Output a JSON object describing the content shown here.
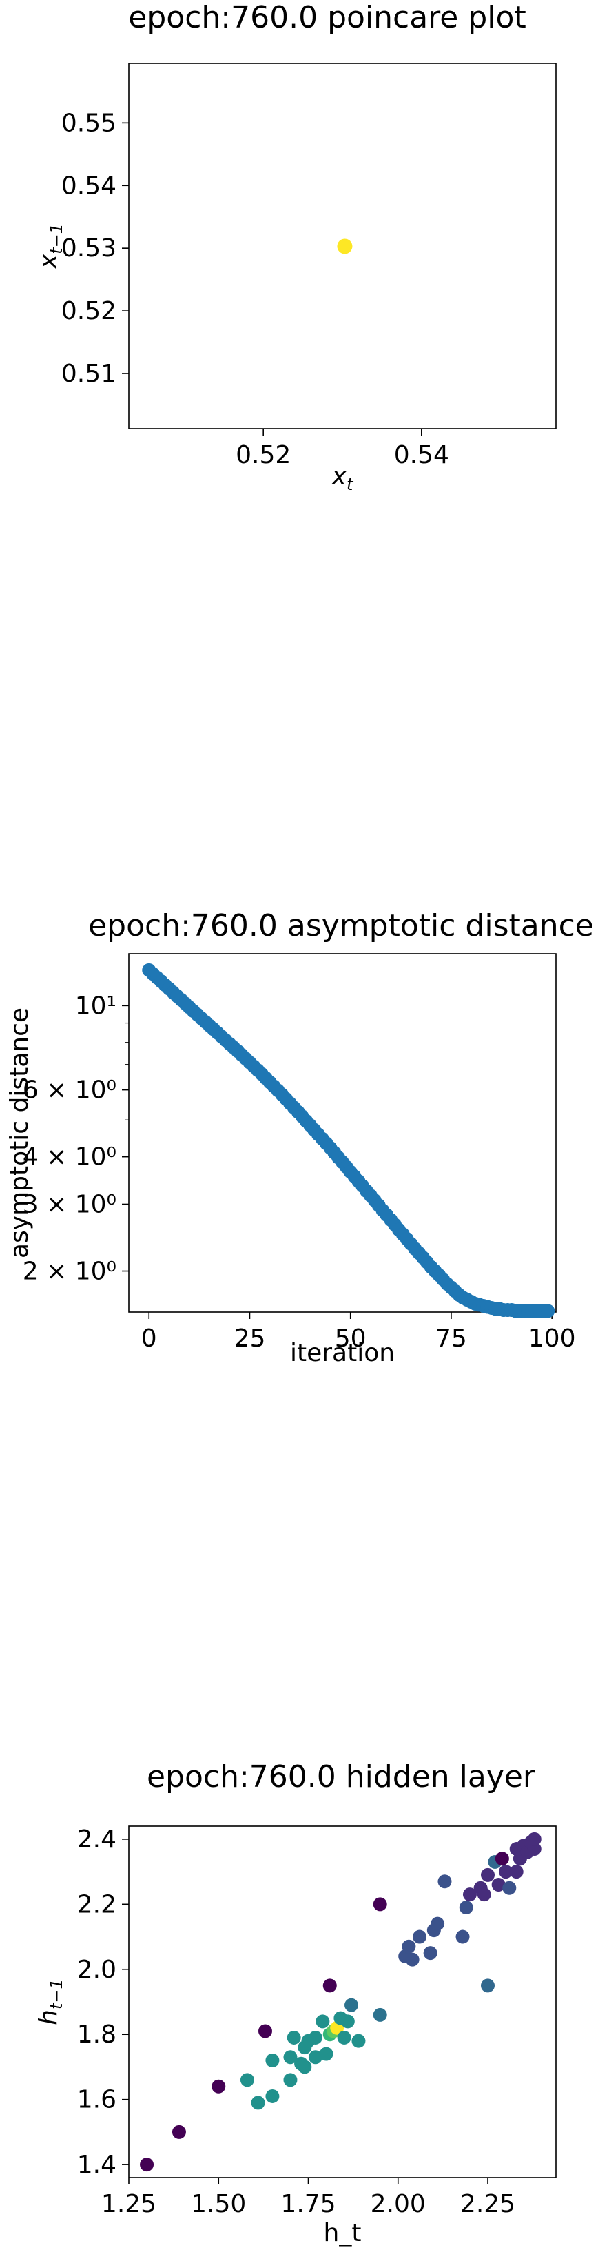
{
  "charts": [
    {
      "title": "epoch:760.0 poincare plot",
      "xlabel": "x_t",
      "ylabel": "x_{t-1}"
    },
    {
      "title": "epoch:760.0 asymptotic distance",
      "xlabel": "iteration",
      "ylabel": "asymptotic distance"
    },
    {
      "title": "epoch:760.0 hidden layer",
      "xlabel": "h_t",
      "ylabel": "h_{t-1}"
    }
  ],
  "chart_data": [
    {
      "type": "scatter",
      "title": "epoch:760.0 poincare plot",
      "xlabel": "x_t",
      "ylabel": "x_{t-1}",
      "xlim": [
        0.503,
        0.557
      ],
      "ylim": [
        0.5012,
        0.5595
      ],
      "xticks": [
        0.52,
        0.54
      ],
      "xtick_labels": [
        "0.52",
        "0.54"
      ],
      "yticks": [
        0.51,
        0.52,
        0.53,
        0.54,
        0.55
      ],
      "ytick_labels": [
        "0.51",
        "0.52",
        "0.53",
        "0.54",
        "0.55"
      ],
      "points": [
        {
          "x": 0.5303,
          "y": 0.5303,
          "color": "#fde725"
        }
      ]
    },
    {
      "type": "scatter",
      "title": "epoch:760.0 asymptotic distance",
      "xlabel": "iteration",
      "ylabel": "asymptotic distance",
      "yscale": "log",
      "xlim": [
        -5,
        101
      ],
      "ylim": [
        1.56,
        13.7
      ],
      "xticks": [
        0,
        25,
        50,
        75,
        100
      ],
      "xtick_labels": [
        "0",
        "25",
        "50",
        "75",
        "100"
      ],
      "yticks": [
        2,
        3,
        4,
        6,
        10
      ],
      "ytick_labels": [
        "2 × 10⁰",
        "3 × 10⁰",
        "4 × 10⁰",
        "6 × 10⁰",
        "10¹"
      ],
      "minor_yticks": [
        5,
        7,
        8,
        9
      ],
      "marker_color": "#1f77b4",
      "series": [
        {
          "x": [
            0,
            1,
            2,
            3,
            4,
            5,
            6,
            7,
            8,
            9,
            10,
            11,
            12,
            13,
            14,
            15,
            16,
            17,
            18,
            19,
            20,
            21,
            22,
            23,
            24,
            25,
            26,
            27,
            28,
            29,
            30,
            31,
            32,
            33,
            34,
            35,
            36,
            37,
            38,
            39,
            40,
            41,
            42,
            43,
            44,
            45,
            46,
            47,
            48,
            49,
            50,
            51,
            52,
            53,
            54,
            55,
            56,
            57,
            58,
            59,
            60,
            61,
            62,
            63,
            64,
            65,
            66,
            67,
            68,
            69,
            70,
            71,
            72,
            73,
            74,
            75,
            76,
            77,
            78,
            79,
            80,
            81,
            82,
            83,
            84,
            85,
            86,
            87,
            88,
            89,
            90,
            91,
            92,
            93,
            94,
            95,
            96,
            97,
            98,
            99
          ],
          "y": [
            12.4,
            12.12,
            11.85,
            11.59,
            11.33,
            11.08,
            10.83,
            10.59,
            10.36,
            10.13,
            9.9,
            9.68,
            9.47,
            9.26,
            9.06,
            8.86,
            8.67,
            8.48,
            8.29,
            8.11,
            7.93,
            7.76,
            7.59,
            7.42,
            7.25,
            7.08,
            6.92,
            6.76,
            6.6,
            6.44,
            6.28,
            6.13,
            5.98,
            5.83,
            5.68,
            5.53,
            5.39,
            5.25,
            5.11,
            4.97,
            4.84,
            4.71,
            4.58,
            4.46,
            4.34,
            4.22,
            4.1,
            3.98,
            3.87,
            3.76,
            3.65,
            3.55,
            3.45,
            3.35,
            3.25,
            3.16,
            3.07,
            2.98,
            2.89,
            2.81,
            2.73,
            2.65,
            2.57,
            2.5,
            2.43,
            2.36,
            2.29,
            2.23,
            2.17,
            2.11,
            2.05,
            2,
            1.95,
            1.9,
            1.85,
            1.81,
            1.77,
            1.73,
            1.7,
            1.68,
            1.66,
            1.64,
            1.63,
            1.62,
            1.61,
            1.6,
            1.59,
            1.59,
            1.58,
            1.58,
            1.58,
            1.57,
            1.57,
            1.57,
            1.57,
            1.57,
            1.57,
            1.57,
            1.57,
            1.57
          ]
        }
      ]
    },
    {
      "type": "scatter",
      "title": "epoch:760.0 hidden layer",
      "xlabel": "h_t",
      "ylabel": "h_{t-1}",
      "xlim": [
        1.25,
        2.44
      ],
      "ylim": [
        1.36,
        2.44
      ],
      "xticks": [
        1.25,
        1.5,
        1.75,
        2.0,
        2.25
      ],
      "xtick_labels": [
        "1.25",
        "1.50",
        "1.75",
        "2.00",
        "2.25"
      ],
      "yticks": [
        1.4,
        1.6,
        1.8,
        2.0,
        2.2,
        2.4
      ],
      "ytick_labels": [
        "1.4",
        "1.6",
        "1.8",
        "2.0",
        "2.2",
        "2.4"
      ],
      "colormap": "viridis",
      "points": [
        {
          "x": 1.3,
          "y": 1.4,
          "color": "#440154"
        },
        {
          "x": 1.39,
          "y": 1.5,
          "color": "#440154"
        },
        {
          "x": 1.5,
          "y": 1.64,
          "color": "#440154"
        },
        {
          "x": 1.63,
          "y": 1.81,
          "color": "#440154"
        },
        {
          "x": 1.81,
          "y": 1.95,
          "color": "#440154"
        },
        {
          "x": 1.95,
          "y": 2.2,
          "color": "#440154"
        },
        {
          "x": 2.13,
          "y": 2.27,
          "color": "#3b528b"
        },
        {
          "x": 2.25,
          "y": 1.95,
          "color": "#31688e"
        },
        {
          "x": 2.18,
          "y": 2.1,
          "color": "#3b528b"
        },
        {
          "x": 1.58,
          "y": 1.66,
          "color": "#21918c"
        },
        {
          "x": 1.61,
          "y": 1.59,
          "color": "#21918c"
        },
        {
          "x": 1.65,
          "y": 1.61,
          "color": "#21918c"
        },
        {
          "x": 1.65,
          "y": 1.72,
          "color": "#21918c"
        },
        {
          "x": 1.7,
          "y": 1.66,
          "color": "#21918c"
        },
        {
          "x": 1.7,
          "y": 1.73,
          "color": "#21918c"
        },
        {
          "x": 1.71,
          "y": 1.79,
          "color": "#21918c"
        },
        {
          "x": 1.73,
          "y": 1.71,
          "color": "#21918c"
        },
        {
          "x": 1.74,
          "y": 1.76,
          "color": "#21918c"
        },
        {
          "x": 1.74,
          "y": 1.7,
          "color": "#21918c"
        },
        {
          "x": 1.75,
          "y": 1.78,
          "color": "#21918c"
        },
        {
          "x": 1.77,
          "y": 1.73,
          "color": "#21918c"
        },
        {
          "x": 1.77,
          "y": 1.79,
          "color": "#21918c"
        },
        {
          "x": 1.79,
          "y": 1.84,
          "color": "#21918c"
        },
        {
          "x": 1.8,
          "y": 1.74,
          "color": "#21918c"
        },
        {
          "x": 1.81,
          "y": 1.8,
          "color": "#35b779"
        },
        {
          "x": 1.82,
          "y": 1.81,
          "color": "#5ec962"
        },
        {
          "x": 1.83,
          "y": 1.82,
          "color": "#fde725"
        },
        {
          "x": 1.84,
          "y": 1.85,
          "color": "#21918c"
        },
        {
          "x": 1.85,
          "y": 1.79,
          "color": "#21918c"
        },
        {
          "x": 1.86,
          "y": 1.84,
          "color": "#21918c"
        },
        {
          "x": 1.87,
          "y": 1.89,
          "color": "#2c728e"
        },
        {
          "x": 1.89,
          "y": 1.78,
          "color": "#21918c"
        },
        {
          "x": 1.95,
          "y": 1.86,
          "color": "#2c728e"
        },
        {
          "x": 2.02,
          "y": 2.04,
          "color": "#3b528b"
        },
        {
          "x": 2.03,
          "y": 2.07,
          "color": "#3b528b"
        },
        {
          "x": 2.04,
          "y": 2.03,
          "color": "#3b528b"
        },
        {
          "x": 2.06,
          "y": 2.1,
          "color": "#3b528b"
        },
        {
          "x": 2.09,
          "y": 2.05,
          "color": "#3b528b"
        },
        {
          "x": 2.1,
          "y": 2.12,
          "color": "#3b528b"
        },
        {
          "x": 2.11,
          "y": 2.14,
          "color": "#3b528b"
        },
        {
          "x": 2.19,
          "y": 2.19,
          "color": "#3b528b"
        },
        {
          "x": 2.2,
          "y": 2.23,
          "color": "#472d7b"
        },
        {
          "x": 2.23,
          "y": 2.25,
          "color": "#472d7b"
        },
        {
          "x": 2.24,
          "y": 2.23,
          "color": "#472d7b"
        },
        {
          "x": 2.25,
          "y": 2.29,
          "color": "#472d7b"
        },
        {
          "x": 2.27,
          "y": 2.33,
          "color": "#31688e"
        },
        {
          "x": 2.28,
          "y": 2.26,
          "color": "#472d7b"
        },
        {
          "x": 2.29,
          "y": 2.34,
          "color": "#440154"
        },
        {
          "x": 2.3,
          "y": 2.3,
          "color": "#472d7b"
        },
        {
          "x": 2.31,
          "y": 2.25,
          "color": "#3b528b"
        },
        {
          "x": 2.33,
          "y": 2.3,
          "color": "#472d7b"
        },
        {
          "x": 2.33,
          "y": 2.37,
          "color": "#472d7b"
        },
        {
          "x": 2.34,
          "y": 2.34,
          "color": "#472d7b"
        },
        {
          "x": 2.35,
          "y": 2.38,
          "color": "#472d7b"
        },
        {
          "x": 2.36,
          "y": 2.36,
          "color": "#472d7b"
        },
        {
          "x": 2.37,
          "y": 2.39,
          "color": "#472d7b"
        },
        {
          "x": 2.38,
          "y": 2.37,
          "color": "#472d7b"
        },
        {
          "x": 2.38,
          "y": 2.4,
          "color": "#472d7b"
        }
      ]
    }
  ]
}
